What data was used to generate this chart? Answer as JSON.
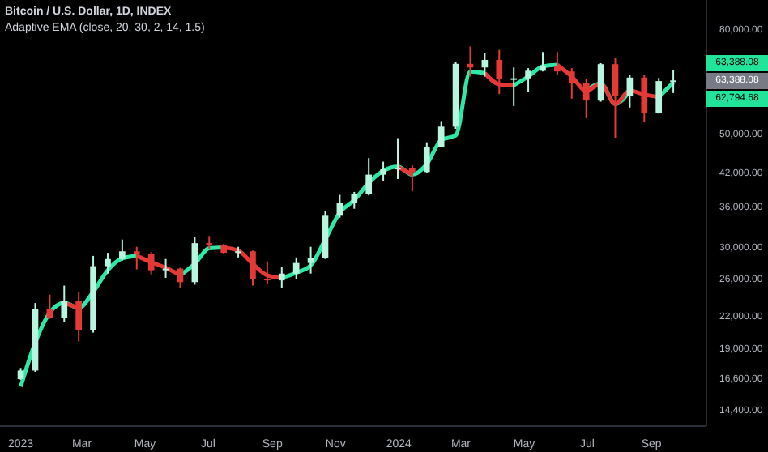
{
  "chart_data": {
    "type": "candlestick",
    "title": "Bitcoin / U.S. Dollar, 1D, INDEX",
    "subtitle": "Adaptive EMA (close, 20, 30, 2, 14, 1.5)",
    "x": [
      "2023-01-01",
      "2023-01-15",
      "2023-01-29",
      "2023-02-12",
      "2023-02-26",
      "2023-03-12",
      "2023-03-26",
      "2023-04-09",
      "2023-04-23",
      "2023-05-07",
      "2023-05-21",
      "2023-06-04",
      "2023-06-18",
      "2023-07-02",
      "2023-07-16",
      "2023-07-30",
      "2023-08-13",
      "2023-08-27",
      "2023-09-10",
      "2023-09-24",
      "2023-10-08",
      "2023-10-22",
      "2023-11-05",
      "2023-11-19",
      "2023-12-03",
      "2023-12-17",
      "2023-12-31",
      "2024-01-14",
      "2024-01-28",
      "2024-02-11",
      "2024-02-25",
      "2024-03-10",
      "2024-03-24",
      "2024-04-07",
      "2024-04-21",
      "2024-05-05",
      "2024-05-19",
      "2024-06-02",
      "2024-06-16",
      "2024-06-30",
      "2024-07-14",
      "2024-07-28",
      "2024-08-11",
      "2024-08-25",
      "2024-09-08",
      "2024-09-22"
    ],
    "ohlc": [
      [
        16550,
        17400,
        16500,
        17200
      ],
      [
        17200,
        23300,
        17100,
        22700
      ],
      [
        22700,
        24200,
        21700,
        21800
      ],
      [
        21800,
        25200,
        21400,
        23500
      ],
      [
        23500,
        24500,
        19600,
        20600
      ],
      [
        20600,
        28800,
        20400,
        27500
      ],
      [
        27500,
        29200,
        26600,
        28400
      ],
      [
        28400,
        31000,
        28200,
        29400
      ],
      [
        29400,
        30000,
        27100,
        29000
      ],
      [
        29000,
        29300,
        26500,
        27000
      ],
      [
        27000,
        28400,
        26100,
        27200
      ],
      [
        27200,
        27300,
        24900,
        25600
      ],
      [
        25600,
        31400,
        25300,
        30500
      ],
      [
        30500,
        31500,
        29700,
        30300
      ],
      [
        30300,
        30400,
        29000,
        29200
      ],
      [
        29200,
        30000,
        28600,
        29400
      ],
      [
        29400,
        29500,
        25200,
        26000
      ],
      [
        26000,
        28100,
        25400,
        25800
      ],
      [
        25800,
        27400,
        24900,
        26600
      ],
      [
        26600,
        28600,
        26000,
        27900
      ],
      [
        27900,
        30000,
        26600,
        28500
      ],
      [
        28500,
        35200,
        28400,
        34500
      ],
      [
        34500,
        37900,
        34200,
        36500
      ],
      [
        36500,
        38400,
        35600,
        38000
      ],
      [
        38000,
        44700,
        37800,
        41500
      ],
      [
        41500,
        44000,
        40300,
        42500
      ],
      [
        42500,
        48900,
        40700,
        42800
      ],
      [
        42800,
        43300,
        38500,
        42000
      ],
      [
        42000,
        48000,
        41900,
        47000
      ],
      [
        47000,
        52800,
        47000,
        51500
      ],
      [
        51500,
        69000,
        51000,
        68300
      ],
      [
        68300,
        73800,
        64500,
        67200
      ],
      [
        67200,
        71700,
        64500,
        69500
      ],
      [
        69500,
        72700,
        59600,
        63800
      ],
      [
        63800,
        67200,
        56500,
        64000
      ],
      [
        64000,
        67000,
        60200,
        66200
      ],
      [
        66200,
        72000,
        66000,
        67700
      ],
      [
        67700,
        72000,
        65000,
        66000
      ],
      [
        66000,
        67000,
        58400,
        62600
      ],
      [
        62600,
        63800,
        53500,
        57900
      ],
      [
        57900,
        68500,
        57600,
        68200
      ],
      [
        68200,
        70000,
        49000,
        59000
      ],
      [
        59000,
        65000,
        56100,
        64200
      ],
      [
        64200,
        65000,
        52600,
        54800
      ],
      [
        54800,
        64100,
        54600,
        63200
      ],
      [
        63200,
        66500,
        59900,
        63388.08
      ]
    ],
    "colors": [
      "#b8f5df",
      "#b8f5df",
      "#e53935",
      "#b8f5df",
      "#e53935",
      "#b8f5df",
      "#b8f5df",
      "#b8f5df",
      "#e53935",
      "#e53935",
      "#b8f5df",
      "#e53935",
      "#b8f5df",
      "#e53935",
      "#e53935",
      "#b8f5df",
      "#e53935",
      "#e53935",
      "#b8f5df",
      "#b8f5df",
      "#b8f5df",
      "#b8f5df",
      "#b8f5df",
      "#b8f5df",
      "#b8f5df",
      "#b8f5df",
      "#b8f5df",
      "#e53935",
      "#b8f5df",
      "#b8f5df",
      "#b8f5df",
      "#e53935",
      "#b8f5df",
      "#e53935",
      "#b8f5df",
      "#b8f5df",
      "#b8f5df",
      "#e53935",
      "#e53935",
      "#e53935",
      "#b8f5df",
      "#e53935",
      "#b8f5df",
      "#e53935",
      "#b8f5df",
      "#b8f5df"
    ],
    "series": [
      {
        "type": "line",
        "color": "#2ee8a8",
        "values": [
          16000,
          19500,
          22300,
          23300,
          22800,
          24500,
          27000,
          28500,
          28800,
          null,
          null,
          26400,
          27800,
          29800,
          29900,
          null,
          null,
          null,
          26100,
          26700,
          27600,
          31000,
          35000,
          37000,
          40000,
          42200,
          43000,
          41500,
          43500,
          48500,
          49500,
          66000,
          65500,
          null,
          62000,
          64500,
          67500,
          68000,
          null,
          60500,
          62500,
          57000,
          60500,
          null,
          58800,
          62794.68
        ]
      },
      {
        "type": "line",
        "color": "#e53935",
        "values": [
          null,
          null,
          null,
          23300,
          22800,
          null,
          null,
          null,
          28800,
          28000,
          27300,
          26400,
          null,
          null,
          29900,
          29500,
          27800,
          26400,
          26100,
          null,
          null,
          null,
          null,
          null,
          null,
          null,
          43000,
          41500,
          null,
          null,
          null,
          null,
          65500,
          62300,
          62000,
          null,
          null,
          68000,
          64500,
          60500,
          62500,
          57000,
          60500,
          59500,
          58800,
          null
        ]
      }
    ],
    "xlim": [
      "2022-12-12",
      "2024-10-24"
    ],
    "xticks": [
      {
        "value": "2023-01-01",
        "label": "2023"
      },
      {
        "value": "2023-03-01",
        "label": "Mar"
      },
      {
        "value": "2023-05-01",
        "label": "May"
      },
      {
        "value": "2023-07-01",
        "label": "Jul"
      },
      {
        "value": "2023-09-01",
        "label": "Sep"
      },
      {
        "value": "2023-11-01",
        "label": "Nov"
      },
      {
        "value": "2024-01-01",
        "label": "2024"
      },
      {
        "value": "2024-03-01",
        "label": "Mar"
      },
      {
        "value": "2024-05-01",
        "label": "May"
      },
      {
        "value": "2024-07-01",
        "label": "Jul"
      },
      {
        "value": "2024-09-01",
        "label": "Sep"
      }
    ],
    "log": "y",
    "ylim": [
      13400,
      91000
    ],
    "yticks": [
      {
        "value": 14400,
        "label": "14,400.00"
      },
      {
        "value": 16600,
        "label": "16,600.00"
      },
      {
        "value": 19000,
        "label": "19,000.00"
      },
      {
        "value": 22000,
        "label": "22,000.00"
      },
      {
        "value": 26000,
        "label": "26,000.00"
      },
      {
        "value": 30000,
        "label": "30,000.00"
      },
      {
        "value": 36000,
        "label": "36,000.00"
      },
      {
        "value": 42000,
        "label": "42,000.00"
      },
      {
        "value": 50000,
        "label": "50,000.00"
      },
      {
        "value": 80000,
        "label": "80,000.00"
      }
    ],
    "annotations": [
      "63,388.08",
      "63,388.08",
      "62,794.68"
    ]
  }
}
